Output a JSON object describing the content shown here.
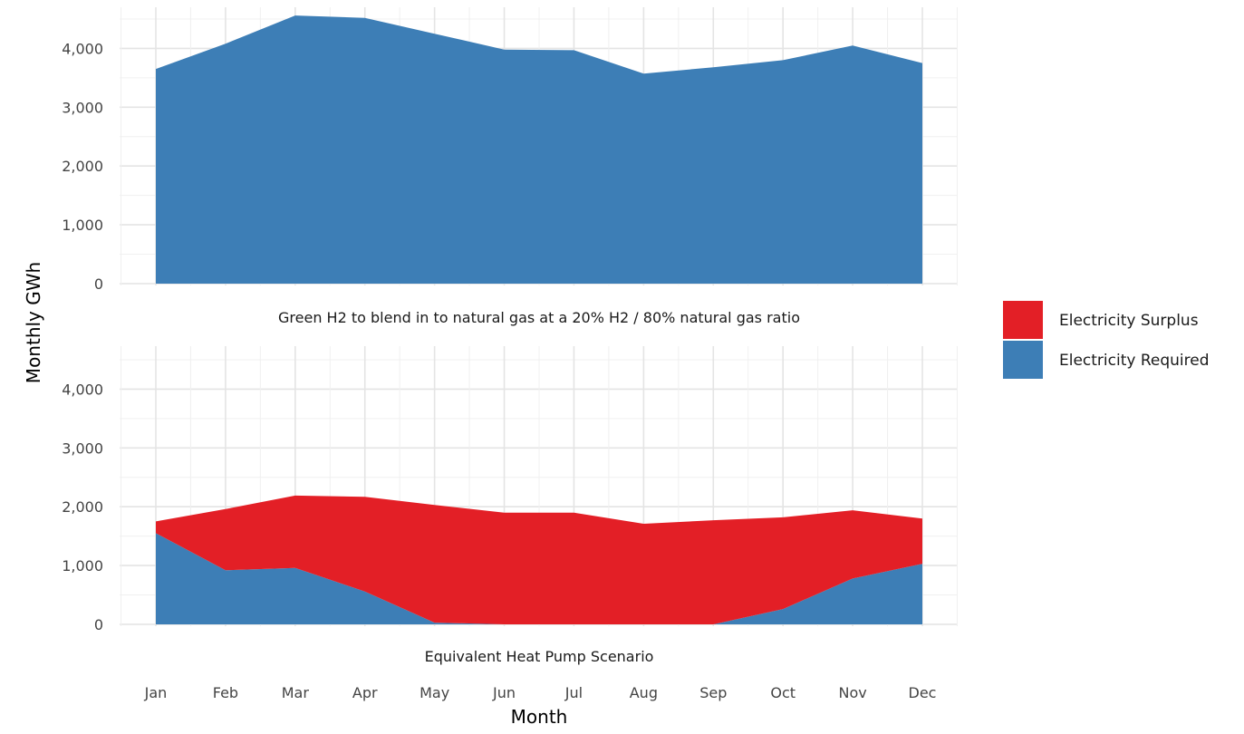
{
  "chart_data": {
    "type": "area",
    "ylabel": "Monthly GWh",
    "xlabel": "Month",
    "categories": [
      "Jan",
      "Feb",
      "Mar",
      "Apr",
      "May",
      "Jun",
      "Jul",
      "Aug",
      "Sep",
      "Oct",
      "Nov",
      "Dec"
    ],
    "ylim": [
      0,
      4700
    ],
    "yticks": [
      0,
      1000,
      2000,
      3000,
      4000
    ],
    "ytick_labels": [
      "0",
      "1,000",
      "2,000",
      "3,000",
      "4,000"
    ],
    "grid": true,
    "legend": {
      "position": "right",
      "entries": [
        {
          "name": "Electricity Surplus",
          "color": "#e31f26"
        },
        {
          "name": "Electricity Required",
          "color": "#3d7eb6"
        }
      ]
    },
    "panels": [
      {
        "title": "Green H2 to blend in to natural gas at a 20% H2 / 80% natural gas ratio",
        "series": [
          {
            "name": "Electricity Required",
            "color": "#3d7eb6",
            "values": [
              3650,
              4080,
              4560,
              4520,
              4250,
              3980,
              3970,
              3570,
              3680,
              3800,
              4050,
              3750
            ]
          }
        ]
      },
      {
        "title": "Equivalent Heat Pump Scenario",
        "series": [
          {
            "name": "Electricity Required",
            "color": "#3d7eb6",
            "values": [
              1550,
              920,
              960,
              560,
              30,
              0,
              0,
              0,
              0,
              260,
              780,
              1030
            ]
          },
          {
            "name": "Electricity Surplus",
            "color": "#e31f26",
            "values": [
              200,
              1040,
              1230,
              1610,
              2000,
              1900,
              1900,
              1710,
              1770,
              1560,
              1160,
              770
            ]
          }
        ]
      }
    ]
  }
}
